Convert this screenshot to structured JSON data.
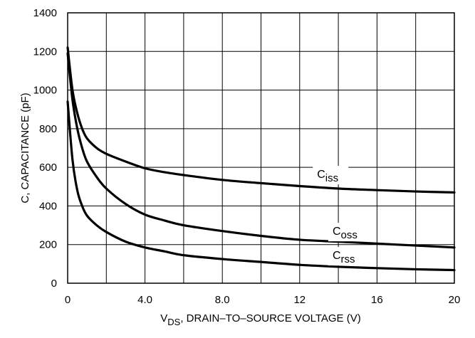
{
  "chart_data": {
    "type": "line",
    "xlabel": {
      "prefix": "V",
      "subscript": "DS",
      "rest": ", DRAIN–TO–SOURCE VOLTAGE (V)"
    },
    "ylabel": "C, CAPACITANCE (pF)",
    "xlim": [
      0,
      20
    ],
    "ylim": [
      0,
      1400
    ],
    "x_ticks": [
      {
        "value": 0,
        "label": "0"
      },
      {
        "value": 4,
        "label": "4.0"
      },
      {
        "value": 8,
        "label": "8.0"
      },
      {
        "value": 12,
        "label": "12"
      },
      {
        "value": 16,
        "label": "16"
      },
      {
        "value": 20,
        "label": "20"
      }
    ],
    "y_ticks": [
      {
        "value": 0,
        "label": "0"
      },
      {
        "value": 200,
        "label": "200"
      },
      {
        "value": 400,
        "label": "400"
      },
      {
        "value": 600,
        "label": "600"
      },
      {
        "value": 800,
        "label": "800"
      },
      {
        "value": 1000,
        "label": "1000"
      },
      {
        "value": 1200,
        "label": "1200"
      },
      {
        "value": 1400,
        "label": "1400"
      }
    ],
    "grid": {
      "x_step": 2,
      "y_step": 200
    },
    "series": [
      {
        "name": "Ciss",
        "label_base": "C",
        "label_sub": "iss",
        "label_at": {
          "x": 12.9,
          "y": 545
        },
        "x": [
          0,
          0.25,
          0.5,
          0.75,
          1,
          1.5,
          2,
          3,
          4,
          5,
          6,
          8,
          10,
          12,
          14,
          16,
          18,
          20
        ],
        "y": [
          1220,
          1000,
          880,
          800,
          750,
          700,
          670,
          630,
          595,
          575,
          560,
          535,
          518,
          503,
          490,
          482,
          475,
          470
        ]
      },
      {
        "name": "Coss",
        "label_base": "C",
        "label_sub": "oss",
        "label_at": {
          "x": 13.7,
          "y": 250
        },
        "x": [
          0,
          0.25,
          0.5,
          0.75,
          1,
          1.5,
          2,
          3,
          4,
          5,
          6,
          8,
          10,
          12,
          14,
          16,
          18,
          20
        ],
        "y": [
          1190,
          950,
          800,
          700,
          630,
          550,
          490,
          410,
          355,
          325,
          300,
          270,
          245,
          225,
          215,
          205,
          195,
          185
        ]
      },
      {
        "name": "Crss",
        "label_base": "C",
        "label_sub": "rss",
        "label_at": {
          "x": 13.7,
          "y": 125
        },
        "x": [
          0,
          0.25,
          0.5,
          0.75,
          1,
          1.5,
          2,
          3,
          4,
          5,
          6,
          8,
          10,
          12,
          14,
          16,
          18,
          20
        ],
        "y": [
          940,
          640,
          480,
          400,
          350,
          300,
          265,
          215,
          185,
          165,
          145,
          125,
          110,
          95,
          85,
          78,
          72,
          68
        ]
      }
    ]
  }
}
